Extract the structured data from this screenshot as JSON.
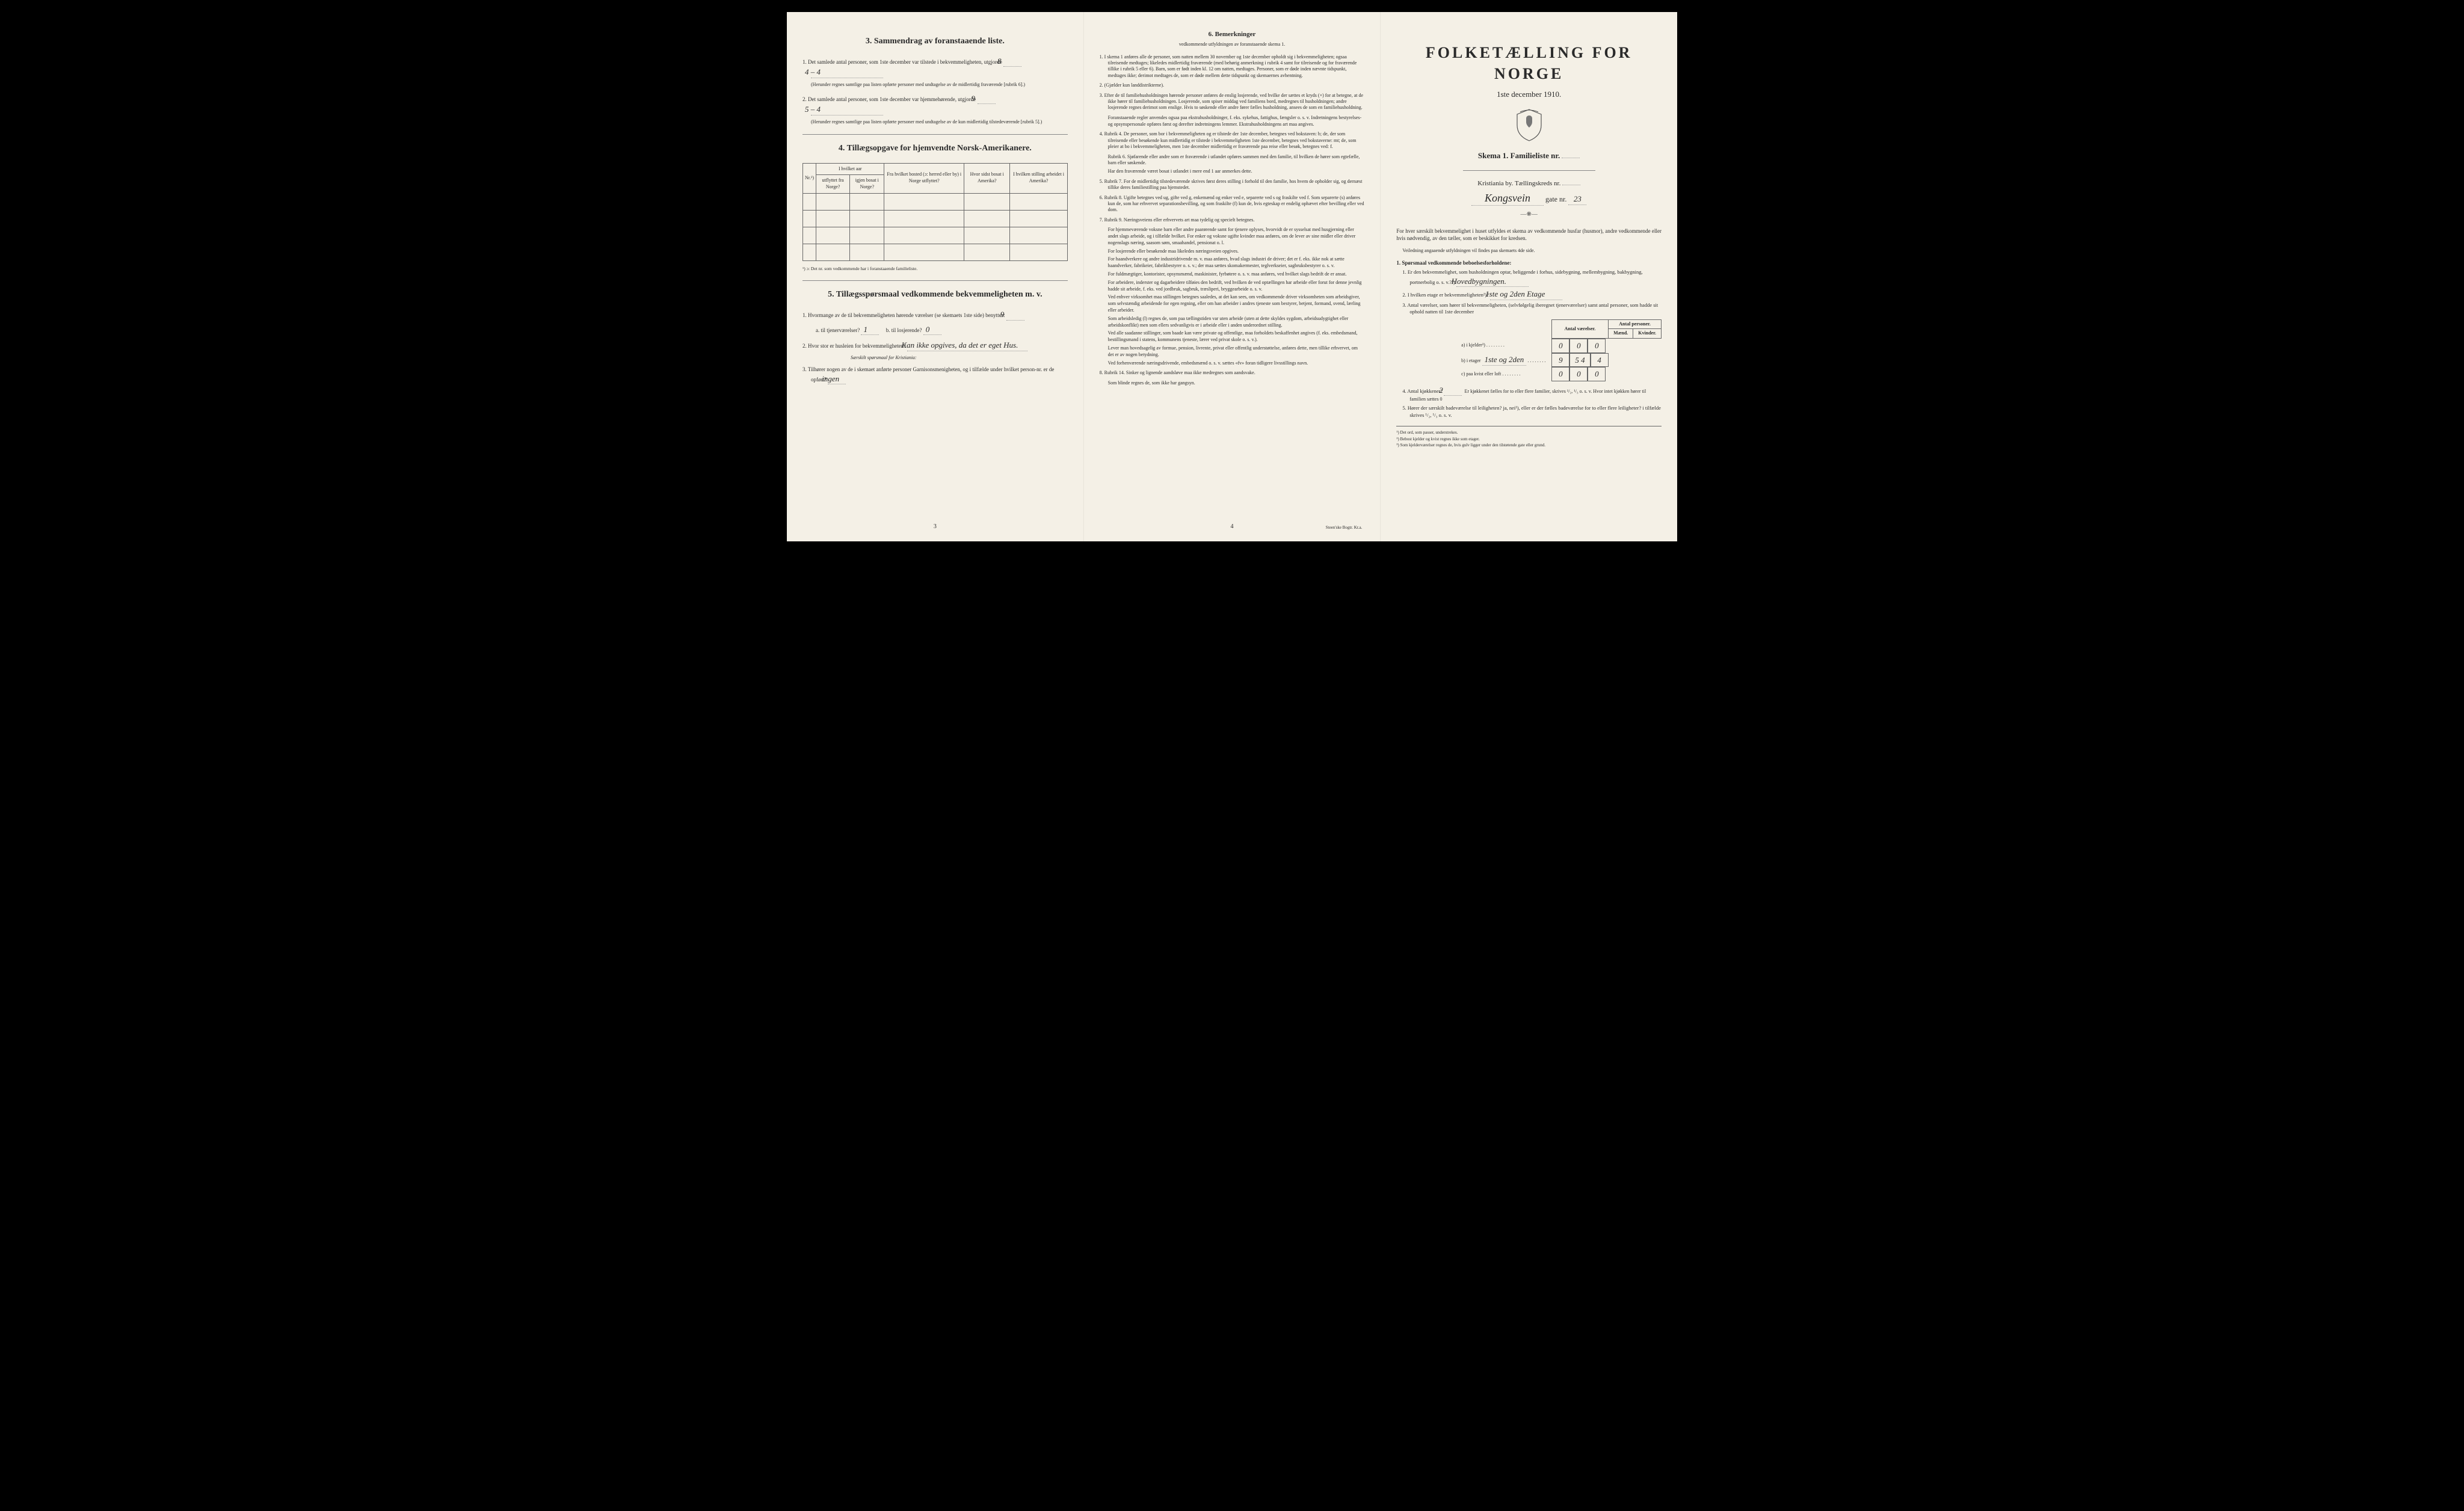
{
  "colors": {
    "paper": "#f4f0e6",
    "ink": "#2a2a2a",
    "border": "#666666",
    "bg": "#000000"
  },
  "panel1": {
    "sec3_title": "3.   Sammendrag av foranstaaende liste.",
    "item1_pre": "1. Det samlede antal personer, som 1ste december var tilstede i bekvemmeligheten, utgjorde",
    "item1_val1": "8",
    "item1_val2": "4 – 4",
    "item1_note": "(Herunder regnes samtlige paa listen opførte personer med undtagelse av de midlertidig fraværende [rubrik 6].)",
    "item2_pre": "2. Det samlede antal personer, som 1ste december var hjemmehørende, utgjorde",
    "item2_val1": "9",
    "item2_val2": "5 – 4",
    "item2_note": "(Herunder regnes samtlige paa listen opførte personer med undtagelse av de kun midlertidig tilstedeværende [rubrik 5].)",
    "sec4_title": "4.   Tillægsopgave for hjemvendte Norsk-Amerikanere.",
    "tbl": {
      "h_nr": "Nr.¹)",
      "h_year": "I hvilket aar",
      "h_year_a": "utflyttet fra Norge?",
      "h_year_b": "igjen bosat i Norge?",
      "h_from": "Fra hvilket bosted (ɔ: herred eller by) i Norge utflyttet?",
      "h_where": "Hvor sidst bosat i Amerika?",
      "h_job": "I hvilken stilling arbeidet i Amerika?"
    },
    "tbl_fn": "¹) ɔ: Det nr. som vedkommende har i foranstaaende familieliste.",
    "sec5_title": "5.   Tillægsspørsmaal vedkommende bekvemmeligheten m. v.",
    "q5_1": "1. Hvormange av de til bekvemmeligheten hørende værelser (se skemaets 1ste side) benyttes:",
    "q5_1_val": "9",
    "q5_1a": "a. til tjenerværelser?",
    "q5_1a_val": "1",
    "q5_1b": "b. til losjerende?",
    "q5_1b_val": "0",
    "q5_2": "2. Hvor stor er husleien for bekvemmeligheten?",
    "q5_2_val": "Kan ikke opgives, da det er eget Hus.",
    "q5_2_note": "Særskilt spørsmaal for Kristiania:",
    "q5_3": "3. Tilhører nogen av de i skemaet anførte personer Garnisonsmenigheten, og i tilfælde under hvilket person-nr. er de opført?",
    "q5_3_val": "ingen",
    "page": "3"
  },
  "panel2": {
    "title": "6.   Bemerkninger",
    "sub": "vedkommende utfyldningen av foranstaaende skema 1.",
    "items": [
      "1. I skema 1 anføres alle de personer, som natten mellem 30 november og 1ste december opholdt sig i bekvemmeligheten; ogsaa tilreisende medtages; likeledes midlertidig fraværende (med behørig anmerkning i rubrik 4 samt for tilreisende og for fraværende tillike i rubrik 5 eller 6). Barn, som er født inden kl. 12 om natten, medtages. Personer, som er døde inden nævnte tidspunkt, medtages ikke; derimot medtages de, som er døde mellem dette tidspunkt og skemaernes avhentning.",
      "2. (Gjælder kun landdistrikterne).",
      "3. Efter de til familiehusholdningen hørende personer anføres de enslig losjerende, ved hvilke der sættes et kryds (×) for at betegne, at de ikke hører til familiehusholdningen. Losjerende, som spiser middag ved familiens bord, medregnes til husholdningen; andre losjerende regnes derimot som enslige. Hvis to søskende eller andre fører fælles husholdning, ansees de som en familiehusholdning.\nForanstaaende regler anvendes ogsaa paa ekstrahusholdninger, f. eks. sykehus, fattighus, fængsler o. s. v. Indretningens bestyrelses- og opsynspersonale opføres først og derefter indretningens lemmer. Ekstrahusholdningens art maa angives.",
      "4. Rubrik 4. De personer, som bor i bekvemmeligheten og er tilstede der 1ste december, betegnes ved bokstaven: b; de, der som tilreisende eller besøkende kun midlertidig er tilstede i bekvemmeligheten 1ste december, betegnes ved bokstaverne: mt; de, som pleier at bo i bekvemmeligheten, men 1ste december midlertidig er fraværende paa reise eller besøk, betegnes ved: f.\nRubrik 6. Sjøfarende eller andre som er fraværende i utlandet opføres sammen med den familie, til hvilken de hører som egtefælle, barn eller søskende.\nHar den fraværende været bosat i utlandet i mere end 1 aar anmerkes dette.",
      "5. Rubrik 7. For de midlertidig tilstedeværende skrives først deres stilling i forhold til den familie, hos hvem de opholder sig, og dernæst tillike deres familiestilling paa hjemstedet.",
      "6. Rubrik 8. Ugifte betegnes ved ug, gifte ved g, enkemænd og enker ved e, separerte ved s og fraskilte ved f. Som separerte (s) anføres kun de, som har erhvervet separationsbevilling, og som fraskilte (f) kun de, hvis egteskap er endelig ophævet efter bevilling eller ved dom.",
      "7. Rubrik 9. Næringsveiens eller erhvervets art maa tydelig og specielt betegnes.\nFor hjemmeværende voksne barn eller andre paarørende samt for tjenere oplyses, hvorvidt de er sysselsat med husgjerning eller andet slags arbeide, og i tilfælde hvilket. For enker og voksne ugifte kvinder maa anføres, om de lever av sine midler eller driver nogenslags næring, saasom søm, smaahandel, pensionat o. l.\nFor losjerende eller besøkende maa likeledes næringsveien opgives.\nFor haandverkere og andre industridrivende m. v. maa anføres, hvad slags industri de driver; det er f. eks. ikke nok at sætte haandverker, fabrikeier, fabrikbestyrer o. s. v.; der maa sættes skomakermester, teglverkseier, sagbruksbestyrer o. s. v.\nFor fuldmægtiger, kontorister, opsynsmænd, maskinister, fyrbøtere o. s. v. maa anføres, ved hvilket slags bedrift de er ansat.\nFor arbeidere, inderster og dagarbeidere tilføies den bedrift, ved hvilken de ved optællingen har arbeide eller forut for denne jevnlig hadde sit arbeide, f. eks. ved jordbruk, sagbruk, træsliperi, bryggearbeide o. s. v.\nVed enhver virksomhet maa stillingen betegnes saaledes, at det kan sees, om vedkommende driver virksomheten som arbeidsgiver, som selvstændig arbeidende for egen regning, eller om han arbeider i andres tjeneste som bestyrer, betjent, formand, svend, lærling eller arbeider.\nSom arbeidsledig (l) regnes de, som paa tællingstiden var uten arbeide (uten at dette skyldes sygdom, arbeidsudygtighet eller arbeidskonflikt) men som ellers sedvanligvis er i arbeide eller i anden underordnet stilling.\nVed alle saadanne stillinger, som baade kan være private og offentlige, maa forholdets beskaffenhet angives (f. eks. embedsmand, bestillingsmand i statens, kommunens tjeneste, lærer ved privat skole o. s. v.).\nLever man hovedsagelig av formue, pension, livrente, privat eller offentlig understøttelse, anføres dette, men tillike erhvervet, om det er av nogen betydning.\nVed forhenværende næringsdrivende, embedsmænd o. s. v. sættes «fv» foran tidligere livsstillings navn.",
      "8. Rubrik 14. Sinker og lignende aandsløve maa ikke medregnes som aandsvake.\nSom blinde regnes de, som ikke har gangsyn."
    ],
    "page": "4",
    "printer": "Steen'ske Bogtr. Kr.a."
  },
  "panel3": {
    "big": "FOLKETÆLLING FOR NORGE",
    "date": "1ste december 1910.",
    "skema": "Skema 1.   Familieliste nr.",
    "city": "Kristiania by.   Tællingskreds nr.",
    "street_written": "Kongsvein",
    "street_suffix": "gate nr.",
    "street_no": "23",
    "intro": "For hver særskilt bekvemmelighet i huset utfyldes et skema av vedkommende husfar (husmor), andre vedkommende eller hvis nødvendig, av den tæller, som er beskikket for kredsen.",
    "intro2": "Veiledning angaaende utfyldningen vil findes paa skemaets 4de side.",
    "q1_title": "1. Spørsmaal vedkommende beboelsesforholdene:",
    "q1_1": "1. Er den bekvemmelighet, som husholdningen optar, beliggende i forhus, sidebygning, mellembygning, bakbygning, portnerbolig o. s. v.?¹)",
    "q1_1_val": "Hovedbygningen.",
    "q1_2": "2. I hvilken etage er bekvemmeligheten²)?",
    "q1_2_val": "1ste og 2den Etage",
    "q1_3": "3. Antal værelser, som hører til bekvemmeligheten, (selvfølgelig iberegnet tjenerværelser) samt antal personer, som hadde sit ophold natten til 1ste december",
    "counts": {
      "h1": "Antal værelser.",
      "h2": "Antal personer.",
      "h2a": "Mænd.",
      "h2b": "Kvinder.",
      "rows": [
        {
          "label": "a) i kjelder³)",
          "fill": "",
          "v": "0",
          "m": "0",
          "k": "0"
        },
        {
          "label": "b) i etager",
          "fill": "1ste og 2den",
          "v": "9",
          "m": "5 4",
          "k": "4"
        },
        {
          "label": "c) paa kvist eller loft",
          "fill": "",
          "v": "0",
          "m": "0",
          "k": "0"
        }
      ]
    },
    "q1_4": "4. Antal kjøkkener?",
    "q1_4_val": "2",
    "q1_4_rest": "Er kjøkkenet fælles for to eller flere familier, skrives ¹/₂, ¹/₃ o. s. v. Hvor intet kjøkken hører til familien sættes 0",
    "q1_5": "5. Hører der særskilt badeværelse til leiligheten? ja, nei¹), eller er der fælles badeværelse for to eller flere leiligheter? i tilfælde skrives ¹/₂, ¹/₃ o. s. v.",
    "fns": [
      "¹) Det ord, som passer, understrekes.",
      "²) Bebost kjelder og kvist regnes ikke som etager.",
      "³) Som kjelderværelser regnes de, hvis gulv ligger under den tilstøtende gate eller grund."
    ]
  }
}
